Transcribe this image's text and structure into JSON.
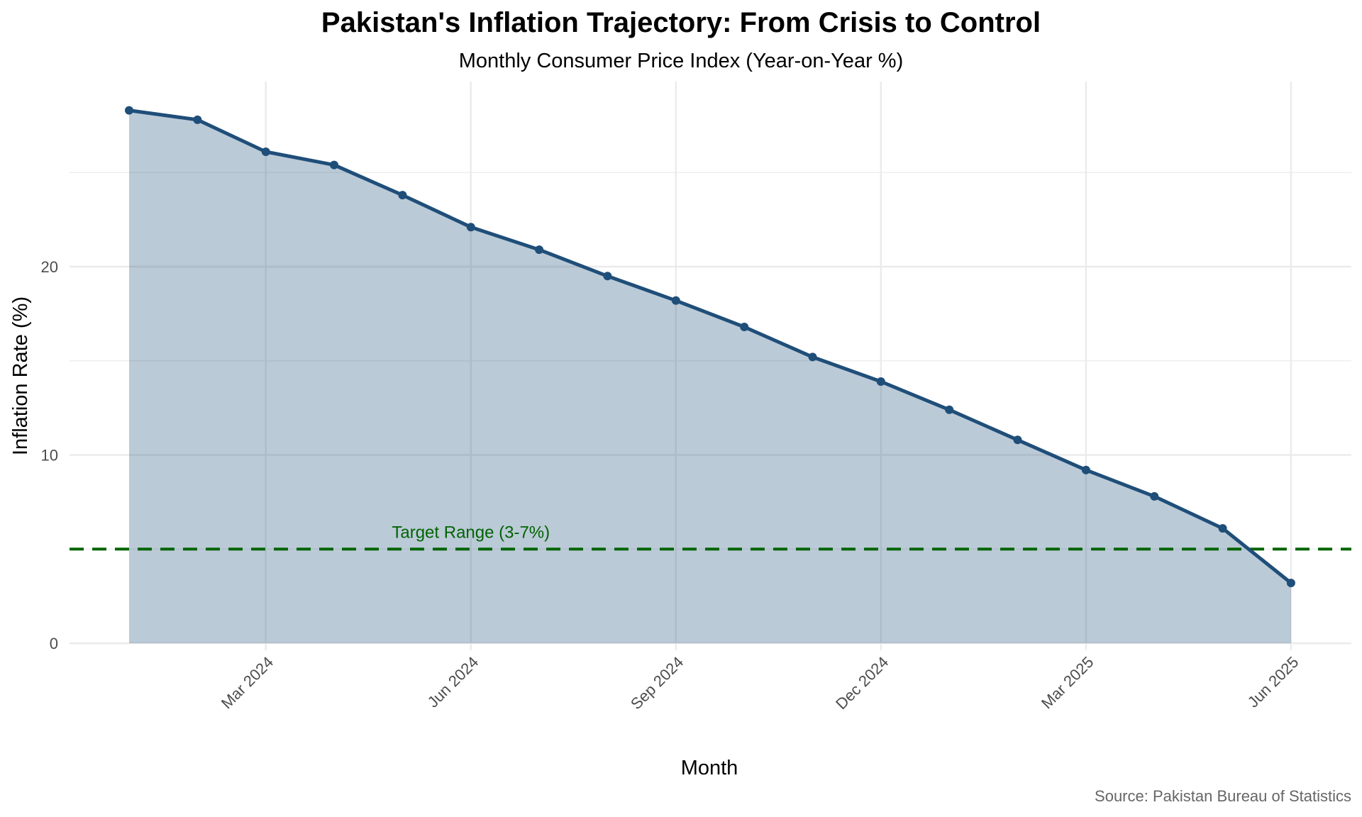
{
  "chart_data": {
    "type": "area",
    "title": "Pakistan's Inflation Trajectory: From Crisis to Control",
    "subtitle": "Monthly Consumer Price Index (Year-on-Year %)",
    "xlabel": "Month",
    "ylabel": "Inflation Rate (%)",
    "caption": "Source: Pakistan Bureau of Statistics",
    "x": [
      "2024-01",
      "2024-02",
      "2024-03",
      "2024-04",
      "2024-05",
      "2024-06",
      "2024-07",
      "2024-08",
      "2024-09",
      "2024-10",
      "2024-11",
      "2024-12",
      "2025-01",
      "2025-02",
      "2025-03",
      "2025-04",
      "2025-05",
      "2025-06"
    ],
    "values": [
      28.3,
      27.8,
      26.1,
      25.4,
      23.8,
      22.1,
      20.9,
      19.5,
      18.2,
      16.8,
      15.2,
      13.9,
      12.4,
      10.8,
      9.2,
      7.8,
      6.1,
      3.2
    ],
    "x_ticks": [
      "Mar 2024",
      "Jun 2024",
      "Sep 2024",
      "Dec 2024",
      "Mar 2025",
      "Jun 2025"
    ],
    "y_ticks": [
      "0",
      "10",
      "20"
    ],
    "ylim": [
      0,
      30
    ],
    "grid": true,
    "reference_line": {
      "value": 5,
      "label": "Target Range (3-7%)",
      "color": "#006400",
      "style": "dashed"
    },
    "colors": {
      "line": "#1f4e79",
      "fill": "#1f4e79",
      "grid": "#ebebeb",
      "caption": "#666666"
    }
  }
}
